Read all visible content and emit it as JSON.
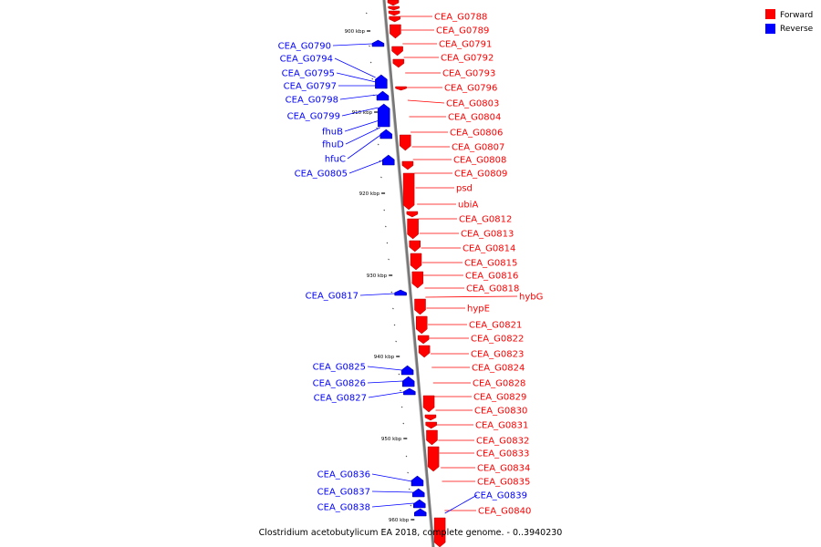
{
  "caption": "Clostridium acetobutylicum EA 2018, complete genome. - 0..3940230",
  "colors": {
    "forward": "#ff0000",
    "reverse": "#0000ff",
    "backbone": "#777777"
  },
  "legend": [
    {
      "label": "Forward",
      "strand": "forward"
    },
    {
      "label": "Reverse",
      "strand": "reverse"
    }
  ],
  "ticks": [
    "900 kbp",
    "910 kbp",
    "920 kbp",
    "930 kbp",
    "940 kbp",
    "950 kbp",
    "960 kbp"
  ],
  "forward_genes": [
    "CEA_G0788",
    "CEA_G0789",
    "CEA_G0791",
    "CEA_G0792",
    "CEA_G0793",
    "CEA_G0796",
    "CEA_G0803",
    "CEA_G0804",
    "CEA_G0806",
    "CEA_G0807",
    "CEA_G0808",
    "CEA_G0809",
    "psd",
    "ubiA",
    "CEA_G0812",
    "CEA_G0813",
    "CEA_G0814",
    "CEA_G0815",
    "CEA_G0816",
    "CEA_G0818",
    "hybG",
    "hypE",
    "CEA_G0821",
    "CEA_G0822",
    "CEA_G0823",
    "CEA_G0824",
    "CEA_G0828",
    "CEA_G0829",
    "CEA_G0830",
    "CEA_G0831",
    "CEA_G0832",
    "CEA_G0833",
    "CEA_G0834",
    "CEA_G0835",
    "CEA_G0840"
  ],
  "reverse_genes": [
    "CEA_G0790",
    "CEA_G0794",
    "CEA_G0795",
    "CEA_G0797",
    "CEA_G0798",
    "CEA_G0799",
    "fhuB",
    "fhuD",
    "hfuC",
    "CEA_G0805",
    "CEA_G0817",
    "CEA_G0825",
    "CEA_G0826",
    "CEA_G0827",
    "CEA_G0836",
    "CEA_G0837",
    "CEA_G0838",
    "CEA_G0839"
  ]
}
